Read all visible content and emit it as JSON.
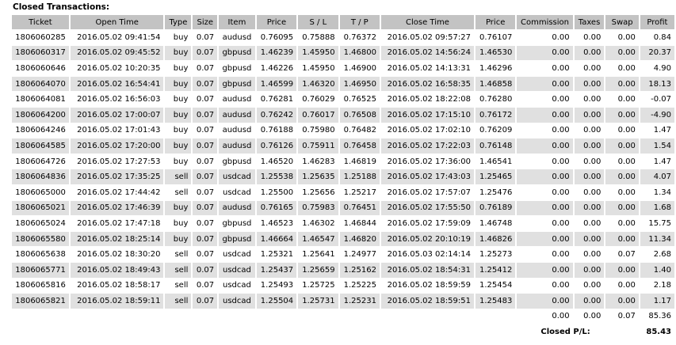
{
  "title": "Closed Transactions:",
  "columns": [
    "Ticket",
    "Open Time",
    "Type",
    "Size",
    "Item",
    "Price",
    "S / L",
    "T / P",
    "Close Time",
    "Price",
    "Commission",
    "Taxes",
    "Swap",
    "Profit"
  ],
  "rows": [
    [
      "1806060285",
      "2016.05.02 09:41:54",
      "buy",
      "0.07",
      "audusd",
      "0.76095",
      "0.75888",
      "0.76372",
      "2016.05.02 09:57:27",
      "0.76107",
      "0.00",
      "0.00",
      "0.00",
      "0.84"
    ],
    [
      "1806060317",
      "2016.05.02 09:45:52",
      "buy",
      "0.07",
      "gbpusd",
      "1.46239",
      "1.45950",
      "1.46800",
      "2016.05.02 14:56:24",
      "1.46530",
      "0.00",
      "0.00",
      "0.00",
      "20.37"
    ],
    [
      "1806060646",
      "2016.05.02 10:20:35",
      "buy",
      "0.07",
      "gbpusd",
      "1.46226",
      "1.45950",
      "1.46900",
      "2016.05.02 14:13:31",
      "1.46296",
      "0.00",
      "0.00",
      "0.00",
      "4.90"
    ],
    [
      "1806064070",
      "2016.05.02 16:54:41",
      "buy",
      "0.07",
      "gbpusd",
      "1.46599",
      "1.46320",
      "1.46950",
      "2016.05.02 16:58:35",
      "1.46858",
      "0.00",
      "0.00",
      "0.00",
      "18.13"
    ],
    [
      "1806064081",
      "2016.05.02 16:56:03",
      "buy",
      "0.07",
      "audusd",
      "0.76281",
      "0.76029",
      "0.76525",
      "2016.05.02 18:22:08",
      "0.76280",
      "0.00",
      "0.00",
      "0.00",
      "-0.07"
    ],
    [
      "1806064200",
      "2016.05.02 17:00:07",
      "buy",
      "0.07",
      "audusd",
      "0.76242",
      "0.76017",
      "0.76508",
      "2016.05.02 17:15:10",
      "0.76172",
      "0.00",
      "0.00",
      "0.00",
      "-4.90"
    ],
    [
      "1806064246",
      "2016.05.02 17:01:43",
      "buy",
      "0.07",
      "audusd",
      "0.76188",
      "0.75980",
      "0.76482",
      "2016.05.02 17:02:10",
      "0.76209",
      "0.00",
      "0.00",
      "0.00",
      "1.47"
    ],
    [
      "1806064585",
      "2016.05.02 17:20:00",
      "buy",
      "0.07",
      "audusd",
      "0.76126",
      "0.75911",
      "0.76458",
      "2016.05.02 17:22:03",
      "0.76148",
      "0.00",
      "0.00",
      "0.00",
      "1.54"
    ],
    [
      "1806064726",
      "2016.05.02 17:27:53",
      "buy",
      "0.07",
      "gbpusd",
      "1.46520",
      "1.46283",
      "1.46819",
      "2016.05.02 17:36:00",
      "1.46541",
      "0.00",
      "0.00",
      "0.00",
      "1.47"
    ],
    [
      "1806064836",
      "2016.05.02 17:35:25",
      "sell",
      "0.07",
      "usdcad",
      "1.25538",
      "1.25635",
      "1.25188",
      "2016.05.02 17:43:03",
      "1.25465",
      "0.00",
      "0.00",
      "0.00",
      "4.07"
    ],
    [
      "1806065000",
      "2016.05.02 17:44:42",
      "sell",
      "0.07",
      "usdcad",
      "1.25500",
      "1.25656",
      "1.25217",
      "2016.05.02 17:57:07",
      "1.25476",
      "0.00",
      "0.00",
      "0.00",
      "1.34"
    ],
    [
      "1806065021",
      "2016.05.02 17:46:39",
      "buy",
      "0.07",
      "audusd",
      "0.76165",
      "0.75983",
      "0.76451",
      "2016.05.02 17:55:50",
      "0.76189",
      "0.00",
      "0.00",
      "0.00",
      "1.68"
    ],
    [
      "1806065024",
      "2016.05.02 17:47:18",
      "buy",
      "0.07",
      "gbpusd",
      "1.46523",
      "1.46302",
      "1.46844",
      "2016.05.02 17:59:09",
      "1.46748",
      "0.00",
      "0.00",
      "0.00",
      "15.75"
    ],
    [
      "1806065580",
      "2016.05.02 18:25:14",
      "buy",
      "0.07",
      "gbpusd",
      "1.46664",
      "1.46547",
      "1.46820",
      "2016.05.02 20:10:19",
      "1.46826",
      "0.00",
      "0.00",
      "0.00",
      "11.34"
    ],
    [
      "1806065638",
      "2016.05.02 18:30:20",
      "sell",
      "0.07",
      "usdcad",
      "1.25321",
      "1.25641",
      "1.24977",
      "2016.05.03 02:14:14",
      "1.25273",
      "0.00",
      "0.00",
      "0.07",
      "2.68"
    ],
    [
      "1806065771",
      "2016.05.02 18:49:43",
      "sell",
      "0.07",
      "usdcad",
      "1.25437",
      "1.25659",
      "1.25162",
      "2016.05.02 18:54:31",
      "1.25412",
      "0.00",
      "0.00",
      "0.00",
      "1.40"
    ],
    [
      "1806065816",
      "2016.05.02 18:58:17",
      "sell",
      "0.07",
      "usdcad",
      "1.25493",
      "1.25725",
      "1.25225",
      "2016.05.02 18:59:59",
      "1.25454",
      "0.00",
      "0.00",
      "0.00",
      "2.18"
    ],
    [
      "1806065821",
      "2016.05.02 18:59:11",
      "sell",
      "0.07",
      "usdcad",
      "1.25504",
      "1.25731",
      "1.25231",
      "2016.05.02 18:59:51",
      "1.25483",
      "0.00",
      "0.00",
      "0.00",
      "1.17"
    ]
  ],
  "totals": {
    "commission": "0.00",
    "taxes": "0.00",
    "swap": "0.07",
    "profit": "85.36"
  },
  "closed_pl": {
    "label": "Closed P/L:",
    "value": "85.43"
  }
}
